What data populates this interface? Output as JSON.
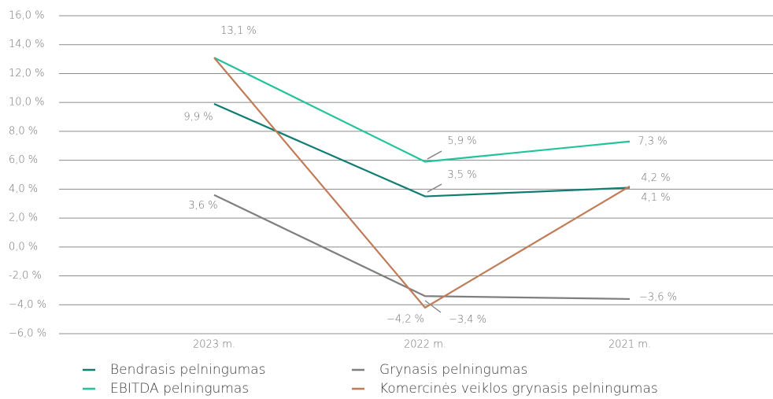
{
  "chart_data": {
    "type": "line",
    "categories": [
      "2023 m.",
      "2022 m.",
      "2021 m."
    ],
    "series": [
      {
        "name": "Bendrasis pelningumas",
        "color": "#0f7d72",
        "values": [
          9.9,
          3.5,
          4.1
        ],
        "value_labels": [
          "9,9 %",
          "3,5 %",
          "4,1 %"
        ]
      },
      {
        "name": "EBITDA pelningumas",
        "color": "#22c39b",
        "values": [
          13.1,
          5.9,
          7.3
        ],
        "value_labels": [
          "13,1 %",
          "5,9 %",
          "7,3 %"
        ]
      },
      {
        "name": "Grynasis pelningumas",
        "color": "#7f7f7f",
        "values": [
          3.6,
          -3.4,
          -3.6
        ],
        "value_labels": [
          "3,6 %",
          "−3,4 %",
          "−3,6 %"
        ]
      },
      {
        "name": "Komercinės veiklos grynasis pelningumas",
        "color": "#c07b57",
        "values": [
          13.1,
          -4.2,
          4.2
        ],
        "value_labels": [
          null,
          "−4,2 %",
          "4,2 %"
        ]
      }
    ],
    "ylim": [
      -6,
      16
    ],
    "yticks": [
      {
        "value": -6,
        "label": "−6,0 %"
      },
      {
        "value": -4,
        "label": "−4,0 %"
      },
      {
        "value": -2,
        "label": "-2,0 %"
      },
      {
        "value": 0,
        "label": "0,0 %"
      },
      {
        "value": 2,
        "label": "2,0 %"
      },
      {
        "value": 4,
        "label": "4,0 %"
      },
      {
        "value": 6,
        "label": "6,0 %"
      },
      {
        "value": 8,
        "label": "8,0 %"
      },
      {
        "value": 10,
        "label": "10,0 %"
      },
      {
        "value": 12,
        "label": "12,0 %"
      },
      {
        "value": 14,
        "label": "14,0 %"
      },
      {
        "value": 16,
        "label": "16,0 %"
      }
    ],
    "grid": true,
    "legend": "bottom"
  }
}
